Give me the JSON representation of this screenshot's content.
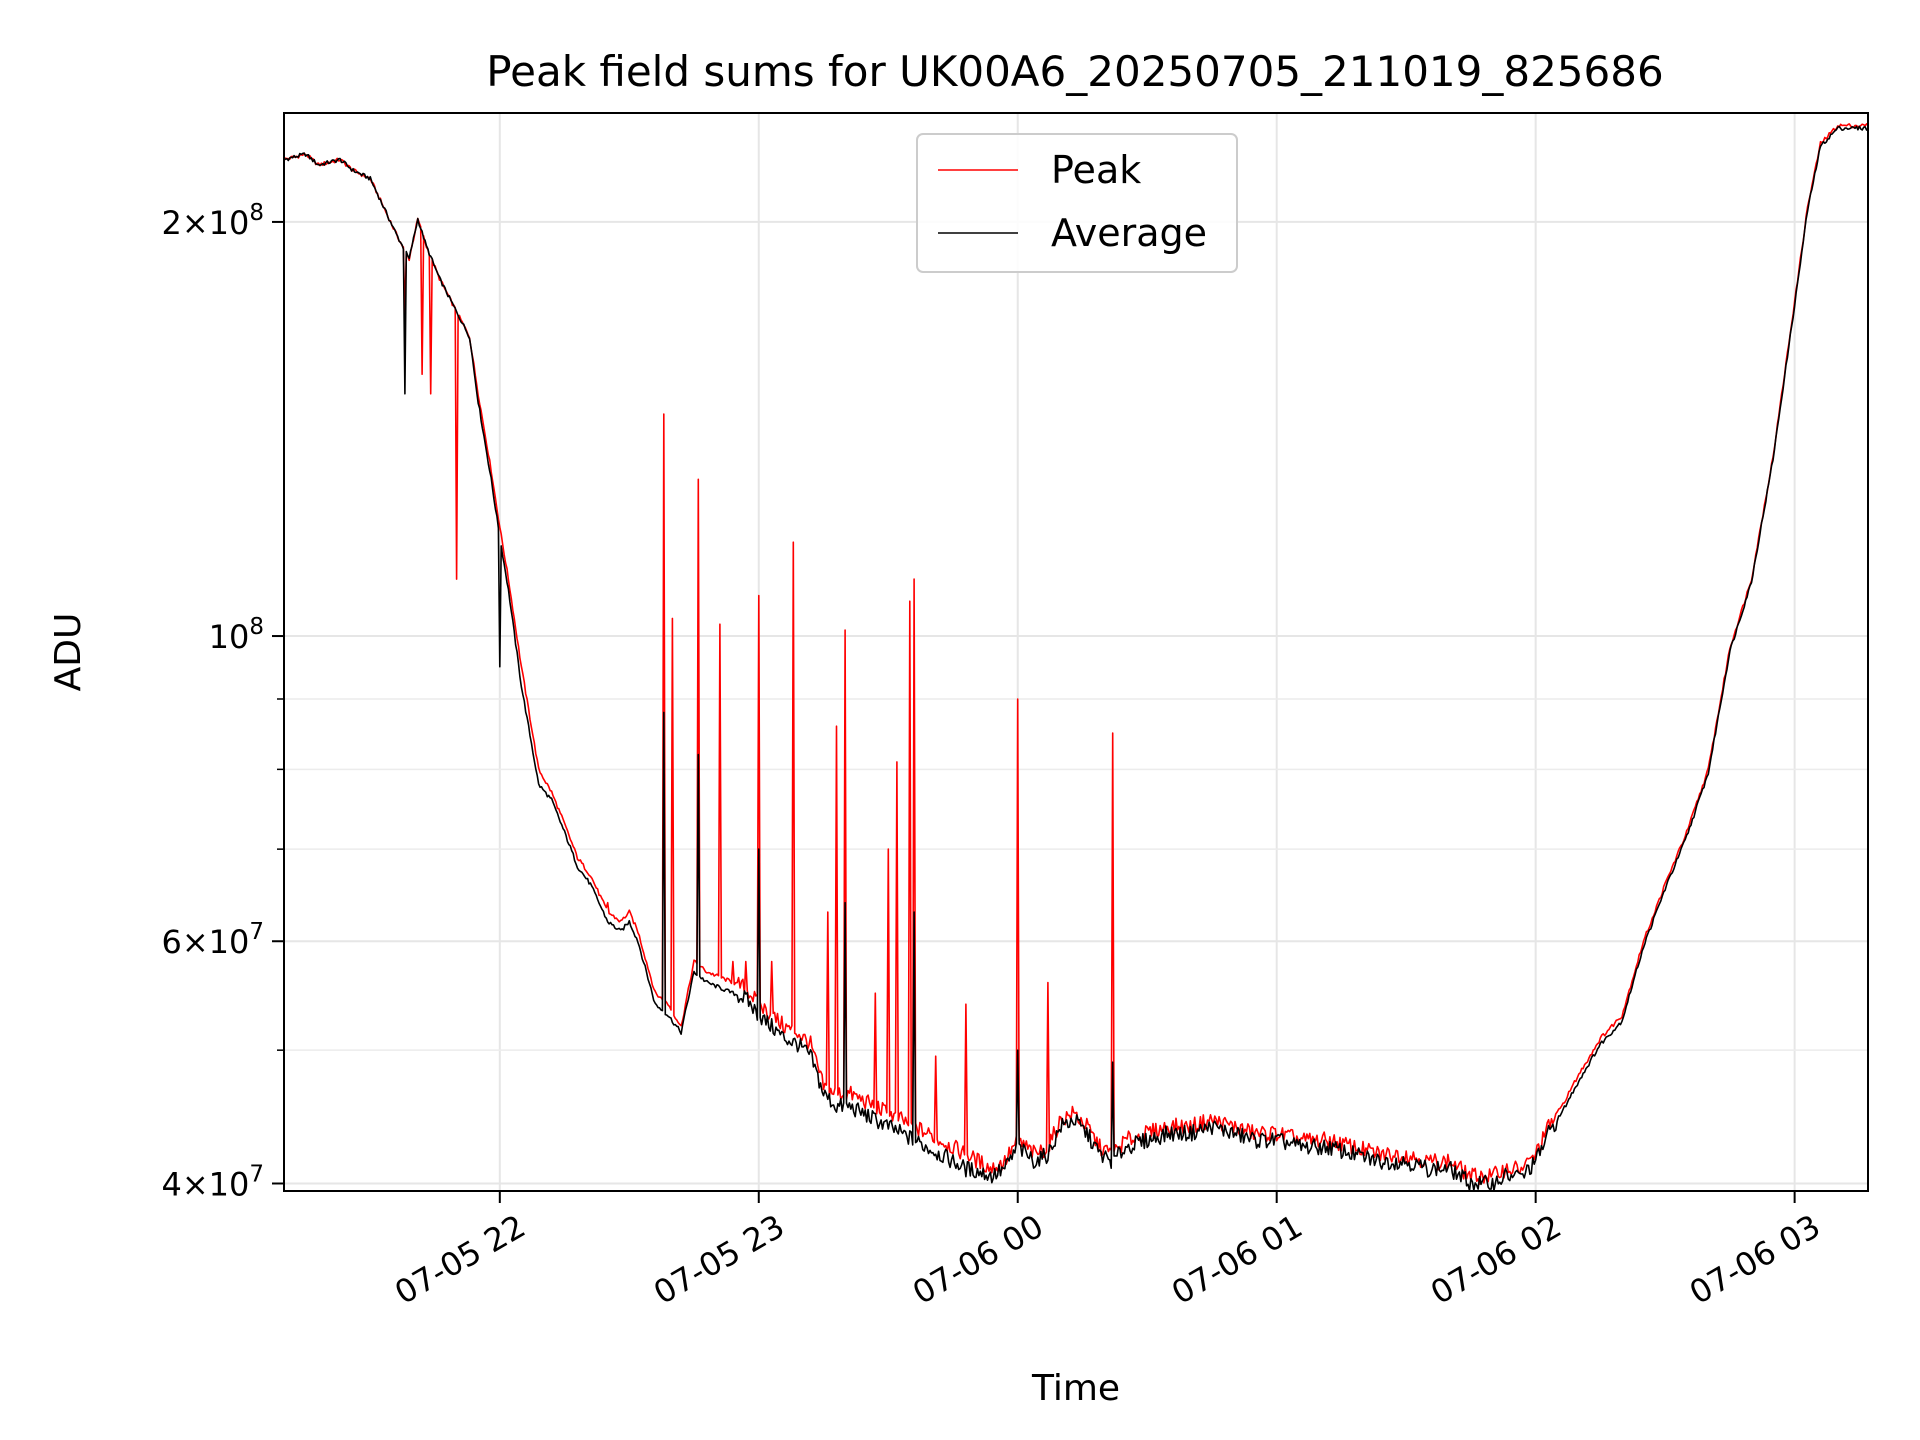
{
  "chart_data": {
    "type": "line",
    "title": "Peak field sums for UK00A6_20250705_211019_825686",
    "xlabel": "Time",
    "ylabel": "ADU",
    "yscale": "log",
    "ylim": [
      39500000,
      240000000
    ],
    "xlim": [
      "2025-07-05 21:10",
      "2025-07-06 03:17"
    ],
    "grid": true,
    "legend_position": "upper center",
    "x_ticks": [
      {
        "t": "2025-07-05 22:00",
        "label": "07-05 22"
      },
      {
        "t": "2025-07-05 23:00",
        "label": "07-05 23"
      },
      {
        "t": "2025-07-06 00:00",
        "label": "07-06 00"
      },
      {
        "t": "2025-07-06 01:00",
        "label": "07-06 01"
      },
      {
        "t": "2025-07-06 02:00",
        "label": "07-06 02"
      },
      {
        "t": "2025-07-06 03:00",
        "label": "07-06 03"
      }
    ],
    "y_ticks": [
      {
        "v": 40000000,
        "base": "4",
        "exp": "7"
      },
      {
        "v": 60000000,
        "base": "6",
        "exp": "7"
      },
      {
        "v": 100000000,
        "base": "",
        "exp": "8"
      },
      {
        "v": 200000000,
        "base": "2",
        "exp": "8"
      }
    ],
    "y_minor_ticks": [
      50000000,
      70000000,
      80000000,
      90000000
    ],
    "series": [
      {
        "name": "Peak",
        "color": "#ff0000",
        "x": [
          "2025-07-05 21:10",
          "2025-07-05 21:15",
          "2025-07-05 21:18",
          "2025-07-05 21:23",
          "2025-07-05 21:26",
          "2025-07-05 21:30",
          "2025-07-05 21:36",
          "2025-07-05 21:39",
          "2025-07-05 21:41",
          "2025-07-05 21:43",
          "2025-07-05 21:46",
          "2025-07-05 21:50",
          "2025-07-05 21:53",
          "2025-07-05 21:55",
          "2025-07-05 21:58",
          "2025-07-05 22:00",
          "2025-07-05 22:02",
          "2025-07-05 22:05",
          "2025-07-05 22:09",
          "2025-07-05 22:12",
          "2025-07-05 22:15",
          "2025-07-05 22:18",
          "2025-07-05 22:21",
          "2025-07-05 22:25",
          "2025-07-05 22:28",
          "2025-07-05 22:30",
          "2025-07-05 22:32",
          "2025-07-05 22:36",
          "2025-07-05 22:39",
          "2025-07-05 22:42",
          "2025-07-05 22:45",
          "2025-07-05 22:48",
          "2025-07-05 22:51",
          "2025-07-05 22:54",
          "2025-07-05 22:57",
          "2025-07-05 23:00",
          "2025-07-05 23:03",
          "2025-07-05 23:06",
          "2025-07-05 23:09",
          "2025-07-05 23:12",
          "2025-07-05 23:15",
          "2025-07-05 23:18",
          "2025-07-05 23:21",
          "2025-07-05 23:24",
          "2025-07-05 23:27",
          "2025-07-05 23:30",
          "2025-07-05 23:33",
          "2025-07-05 23:36",
          "2025-07-05 23:39",
          "2025-07-05 23:42",
          "2025-07-05 23:45",
          "2025-07-05 23:48",
          "2025-07-05 23:51",
          "2025-07-05 23:54",
          "2025-07-05 23:57",
          "2025-07-06 00:00",
          "2025-07-06 00:04",
          "2025-07-06 00:07",
          "2025-07-06 00:10",
          "2025-07-06 00:13",
          "2025-07-06 00:16",
          "2025-07-06 00:19",
          "2025-07-06 00:22",
          "2025-07-06 00:25",
          "2025-07-06 00:30",
          "2025-07-06 00:35",
          "2025-07-06 00:40",
          "2025-07-06 00:45",
          "2025-07-06 00:50",
          "2025-07-06 00:55",
          "2025-07-06 01:00",
          "2025-07-06 01:06",
          "2025-07-06 01:12",
          "2025-07-06 01:18",
          "2025-07-06 01:24",
          "2025-07-06 01:30",
          "2025-07-06 01:35",
          "2025-07-06 01:40",
          "2025-07-06 01:45",
          "2025-07-06 01:50",
          "2025-07-06 01:53",
          "2025-07-06 01:57",
          "2025-07-06 02:00",
          "2025-07-06 02:03",
          "2025-07-06 02:06",
          "2025-07-06 02:10",
          "2025-07-06 02:15",
          "2025-07-06 02:20",
          "2025-07-06 02:25",
          "2025-07-06 02:30",
          "2025-07-06 02:35",
          "2025-07-06 02:40",
          "2025-07-06 02:45",
          "2025-07-06 02:50",
          "2025-07-06 02:55",
          "2025-07-06 03:00",
          "2025-07-06 03:03",
          "2025-07-06 03:06",
          "2025-07-06 03:10",
          "2025-07-06 03:17"
        ],
        "y": [
          222000000,
          224000000,
          220000000,
          222000000,
          218000000,
          215000000,
          196000000,
          188000000,
          201000000,
          192000000,
          182000000,
          172000000,
          165000000,
          150000000,
          132000000,
          120000000,
          110000000,
          95000000,
          80000000,
          77000000,
          73000000,
          69000000,
          67000000,
          63000000,
          62000000,
          63000000,
          61000000,
          55000000,
          54000000,
          52000000,
          58000000,
          57000000,
          56500000,
          56000000,
          55500000,
          54000000,
          53000000,
          52000000,
          51500000,
          50500000,
          47000000,
          46500000,
          46500000,
          46000000,
          45500000,
          45000000,
          44500000,
          44000000,
          43500000,
          43000000,
          42500000,
          42000000,
          41500000,
          41000000,
          41500000,
          43000000,
          42000000,
          42500000,
          44500000,
          45000000,
          44000000,
          42500000,
          42000000,
          43000000,
          43500000,
          44000000,
          44000000,
          44500000,
          44000000,
          43500000,
          43500000,
          43000000,
          43000000,
          42500000,
          42000000,
          42000000,
          41500000,
          41500000,
          40500000,
          40500000,
          41000000,
          41000000,
          42000000,
          44000000,
          45500000,
          48000000,
          51000000,
          53000000,
          60000000,
          66000000,
          72000000,
          80000000,
          98000000,
          110000000,
          135000000,
          175000000,
          205000000,
          228000000,
          235000000,
          235000000
        ],
        "spikes": [
          {
            "t": "2025-07-05 21:38",
            "y": 170000000
          },
          {
            "t": "2025-07-05 21:42",
            "y": 155000000
          },
          {
            "t": "2025-07-05 21:44",
            "y": 150000000
          },
          {
            "t": "2025-07-05 21:50",
            "y": 110000000
          },
          {
            "t": "2025-07-05 22:00",
            "y": 120000000
          },
          {
            "t": "2025-07-05 22:25",
            "y": 64000000
          },
          {
            "t": "2025-07-05 22:38",
            "y": 145000000
          },
          {
            "t": "2025-07-05 22:40",
            "y": 103000000
          },
          {
            "t": "2025-07-05 22:46",
            "y": 130000000
          },
          {
            "t": "2025-07-05 22:51",
            "y": 102000000
          },
          {
            "t": "2025-07-05 22:54",
            "y": 58000000
          },
          {
            "t": "2025-07-05 22:57",
            "y": 58000000
          },
          {
            "t": "2025-07-05 23:00",
            "y": 107000000
          },
          {
            "t": "2025-07-05 23:03",
            "y": 58000000
          },
          {
            "t": "2025-07-05 23:08",
            "y": 117000000
          },
          {
            "t": "2025-07-05 23:16",
            "y": 63000000
          },
          {
            "t": "2025-07-05 23:18",
            "y": 86000000
          },
          {
            "t": "2025-07-05 23:20",
            "y": 101000000
          },
          {
            "t": "2025-07-05 23:27",
            "y": 55000000
          },
          {
            "t": "2025-07-05 23:30",
            "y": 70000000
          },
          {
            "t": "2025-07-05 23:32",
            "y": 81000000
          },
          {
            "t": "2025-07-05 23:35",
            "y": 106000000
          },
          {
            "t": "2025-07-05 23:36",
            "y": 110000000
          },
          {
            "t": "2025-07-05 23:41",
            "y": 49500000
          },
          {
            "t": "2025-07-05 23:48",
            "y": 54000000
          },
          {
            "t": "2025-07-06 00:00",
            "y": 90000000
          },
          {
            "t": "2025-07-06 00:07",
            "y": 56000000
          },
          {
            "t": "2025-07-06 00:22",
            "y": 85000000
          }
        ]
      },
      {
        "name": "Average",
        "color": "#000000",
        "x": [
          "2025-07-05 21:10",
          "2025-07-05 21:15",
          "2025-07-05 21:18",
          "2025-07-05 21:23",
          "2025-07-05 21:26",
          "2025-07-05 21:30",
          "2025-07-05 21:36",
          "2025-07-05 21:39",
          "2025-07-05 21:41",
          "2025-07-05 21:43",
          "2025-07-05 21:46",
          "2025-07-05 21:50",
          "2025-07-05 21:53",
          "2025-07-05 21:55",
          "2025-07-05 21:58",
          "2025-07-05 22:00",
          "2025-07-05 22:02",
          "2025-07-05 22:05",
          "2025-07-05 22:09",
          "2025-07-05 22:12",
          "2025-07-05 22:15",
          "2025-07-05 22:18",
          "2025-07-05 22:21",
          "2025-07-05 22:25",
          "2025-07-05 22:28",
          "2025-07-05 22:30",
          "2025-07-05 22:32",
          "2025-07-05 22:36",
          "2025-07-05 22:39",
          "2025-07-05 22:42",
          "2025-07-05 22:45",
          "2025-07-05 22:48",
          "2025-07-05 22:51",
          "2025-07-05 22:54",
          "2025-07-05 22:57",
          "2025-07-05 23:00",
          "2025-07-05 23:03",
          "2025-07-05 23:06",
          "2025-07-05 23:09",
          "2025-07-05 23:12",
          "2025-07-05 23:15",
          "2025-07-05 23:18",
          "2025-07-05 23:21",
          "2025-07-05 23:24",
          "2025-07-05 23:27",
          "2025-07-05 23:30",
          "2025-07-05 23:33",
          "2025-07-05 23:36",
          "2025-07-05 23:39",
          "2025-07-05 23:42",
          "2025-07-05 23:45",
          "2025-07-05 23:48",
          "2025-07-05 23:51",
          "2025-07-05 23:54",
          "2025-07-05 23:57",
          "2025-07-06 00:00",
          "2025-07-06 00:04",
          "2025-07-06 00:07",
          "2025-07-06 00:10",
          "2025-07-06 00:13",
          "2025-07-06 00:16",
          "2025-07-06 00:19",
          "2025-07-06 00:22",
          "2025-07-06 00:25",
          "2025-07-06 00:30",
          "2025-07-06 00:35",
          "2025-07-06 00:40",
          "2025-07-06 00:45",
          "2025-07-06 00:50",
          "2025-07-06 00:55",
          "2025-07-06 01:00",
          "2025-07-06 01:06",
          "2025-07-06 01:12",
          "2025-07-06 01:18",
          "2025-07-06 01:24",
          "2025-07-06 01:30",
          "2025-07-06 01:35",
          "2025-07-06 01:40",
          "2025-07-06 01:45",
          "2025-07-06 01:50",
          "2025-07-06 01:53",
          "2025-07-06 01:57",
          "2025-07-06 02:00",
          "2025-07-06 02:03",
          "2025-07-06 02:06",
          "2025-07-06 02:10",
          "2025-07-06 02:15",
          "2025-07-06 02:20",
          "2025-07-06 02:25",
          "2025-07-06 02:30",
          "2025-07-06 02:35",
          "2025-07-06 02:40",
          "2025-07-06 02:45",
          "2025-07-06 02:50",
          "2025-07-06 02:55",
          "2025-07-06 03:00",
          "2025-07-06 03:03",
          "2025-07-06 03:06",
          "2025-07-06 03:10",
          "2025-07-06 03:17"
        ],
        "y": [
          222000000,
          224000000,
          220000000,
          222000000,
          218000000,
          215000000,
          196000000,
          188000000,
          201000000,
          192000000,
          182000000,
          172000000,
          165000000,
          148000000,
          130000000,
          118000000,
          108000000,
          92000000,
          78000000,
          76000000,
          72000000,
          68000000,
          66000000,
          62000000,
          61000000,
          62000000,
          60000000,
          54000000,
          53000000,
          51500000,
          57000000,
          56000000,
          55500000,
          55000000,
          54500000,
          53000000,
          52000000,
          51000000,
          50500000,
          49500000,
          46500000,
          45500000,
          45500000,
          45000000,
          44500000,
          44000000,
          43500000,
          43000000,
          42500000,
          42000000,
          41500000,
          41000000,
          40800000,
          40500000,
          41000000,
          42500000,
          41500000,
          42000000,
          44000000,
          44500000,
          43500000,
          42000000,
          41500000,
          42500000,
          43000000,
          43500000,
          43500000,
          44000000,
          43500000,
          43000000,
          43000000,
          42500000,
          42500000,
          42000000,
          41500000,
          41500000,
          41000000,
          41000000,
          40000000,
          40000000,
          40500000,
          40500000,
          41500000,
          43500000,
          45000000,
          47500000,
          50500000,
          52500000,
          59500000,
          65500000,
          71500000,
          79500000,
          97500000,
          109500000,
          134500000,
          174000000,
          204000000,
          227000000,
          234000000,
          234000000
        ],
        "spikes": [
          {
            "t": "2025-07-05 21:38",
            "y": 150000000
          },
          {
            "t": "2025-07-05 22:00",
            "y": 95000000
          },
          {
            "t": "2025-07-05 22:38",
            "y": 88000000
          },
          {
            "t": "2025-07-05 22:46",
            "y": 82000000
          },
          {
            "t": "2025-07-05 23:00",
            "y": 70000000
          },
          {
            "t": "2025-07-05 23:20",
            "y": 64000000
          },
          {
            "t": "2025-07-05 23:36",
            "y": 63000000
          },
          {
            "t": "2025-07-06 00:00",
            "y": 50000000
          },
          {
            "t": "2025-07-06 00:22",
            "y": 49000000
          }
        ]
      }
    ]
  }
}
